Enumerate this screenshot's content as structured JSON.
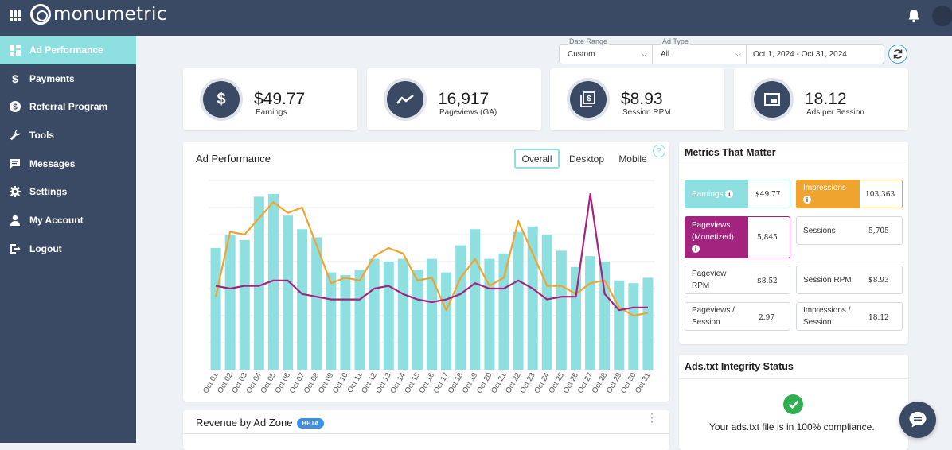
{
  "brand": {
    "name": "monumetric"
  },
  "sidebar": {
    "items": [
      {
        "label": "Ad Performance",
        "icon": "dashboard-icon",
        "active": true
      },
      {
        "label": "Payments",
        "icon": "dollar-icon"
      },
      {
        "label": "Referral Program",
        "icon": "dollar-circle-icon"
      },
      {
        "label": "Tools",
        "icon": "wrench-icon"
      },
      {
        "label": "Messages",
        "icon": "message-icon"
      },
      {
        "label": "Settings",
        "icon": "gear-icon"
      },
      {
        "label": "My Account",
        "icon": "user-icon"
      },
      {
        "label": "Logout",
        "icon": "logout-icon"
      }
    ]
  },
  "filters": {
    "date_range": {
      "label": "Date Range",
      "value": "Custom"
    },
    "ad_type": {
      "label": "Ad Type",
      "value": "All"
    },
    "dates": {
      "value": "Oct 1, 2024 - Oct 31, 2024"
    }
  },
  "stats": [
    {
      "value": "$49.77",
      "label": "Earnings",
      "icon": "dollar-icon"
    },
    {
      "value": "16,917",
      "label": "Pageviews (GA)",
      "icon": "trend-icon"
    },
    {
      "value": "$8.93",
      "label": "Session RPM",
      "icon": "money-stack-icon"
    },
    {
      "value": "18.12",
      "label": "Ads per Session",
      "icon": "window-icon"
    }
  ],
  "ad_performance": {
    "title": "Ad Performance",
    "tabs": [
      "Overall",
      "Desktop",
      "Mobile"
    ],
    "active_tab": "Overall"
  },
  "colors": {
    "bar": "#8ee0e0",
    "line_orange": "#f0a430",
    "line_purple": "#a3247e",
    "nav": "#3b4a64"
  },
  "chart_data": {
    "type": "bar",
    "categories": [
      "Oct 01",
      "Oct 02",
      "Oct 03",
      "Oct 04",
      "Oct 05",
      "Oct 06",
      "Oct 07",
      "Oct 08",
      "Oct 09",
      "Oct 10",
      "Oct 11",
      "Oct 12",
      "Oct 13",
      "Oct 14",
      "Oct 15",
      "Oct 16",
      "Oct 17",
      "Oct 18",
      "Oct 19",
      "Oct 20",
      "Oct 21",
      "Oct 22",
      "Oct 23",
      "Oct 24",
      "Oct 25",
      "Oct 26",
      "Oct 27",
      "Oct 28",
      "Oct 29",
      "Oct 30",
      "Oct 31"
    ],
    "series": [
      {
        "type": "bar",
        "color": "#8ee0e0",
        "values": [
          4.5,
          5.0,
          4.8,
          6.4,
          6.5,
          5.7,
          5.2,
          4.9,
          3.6,
          3.5,
          3.7,
          4.1,
          4.0,
          4.1,
          3.7,
          4.1,
          3.6,
          4.6,
          5.2,
          4.1,
          4.3,
          5.1,
          5.3,
          5.0,
          4.4,
          3.8,
          4.2,
          4.0,
          3.3,
          3.2,
          3.4
        ]
      },
      {
        "type": "line",
        "color": "#f0a430",
        "values": [
          2.7,
          5.1,
          5.0,
          5.6,
          6.2,
          5.8,
          6.0,
          4.6,
          3.2,
          3.4,
          3.3,
          4.2,
          4.5,
          4.3,
          3.3,
          3.4,
          2.2,
          3.4,
          4.1,
          3.1,
          3.4,
          5.5,
          4.3,
          3.1,
          3.1,
          2.8,
          3.2,
          3.3,
          2.3,
          2.0,
          2.1
        ]
      },
      {
        "type": "line",
        "color": "#a3247e",
        "values": [
          3.1,
          3.0,
          3.1,
          3.1,
          3.3,
          3.3,
          2.8,
          2.7,
          2.6,
          2.6,
          2.6,
          3.0,
          3.1,
          2.8,
          2.6,
          2.5,
          2.6,
          2.8,
          3.2,
          3.0,
          3.0,
          3.3,
          3.0,
          2.6,
          2.7,
          2.7,
          6.5,
          2.8,
          2.2,
          2.3,
          2.3
        ]
      }
    ],
    "ylim": [
      0,
      7
    ]
  },
  "metrics": {
    "title": "Metrics That Matter",
    "items": [
      {
        "label": "Earnings",
        "value": "$49.77"
      },
      {
        "label": "Impressions",
        "value": "103,363"
      },
      {
        "label": "Pageviews (Monetized)",
        "value": "5,845"
      },
      {
        "label": "Sessions",
        "value": "5,705"
      },
      {
        "label": "Pageview RPM",
        "value": "$8.52"
      },
      {
        "label": "Session RPM",
        "value": "$8.93"
      },
      {
        "label": "Pageviews / Session",
        "value": "2.97"
      },
      {
        "label": "Impressions / Session",
        "value": "18.12"
      }
    ]
  },
  "ads_txt": {
    "title": "Ads.txt Integrity Status",
    "message": "Your ads.txt file is in 100% compliance."
  },
  "revenue_by_zone": {
    "title": "Revenue by Ad Zone",
    "badge": "BETA"
  }
}
